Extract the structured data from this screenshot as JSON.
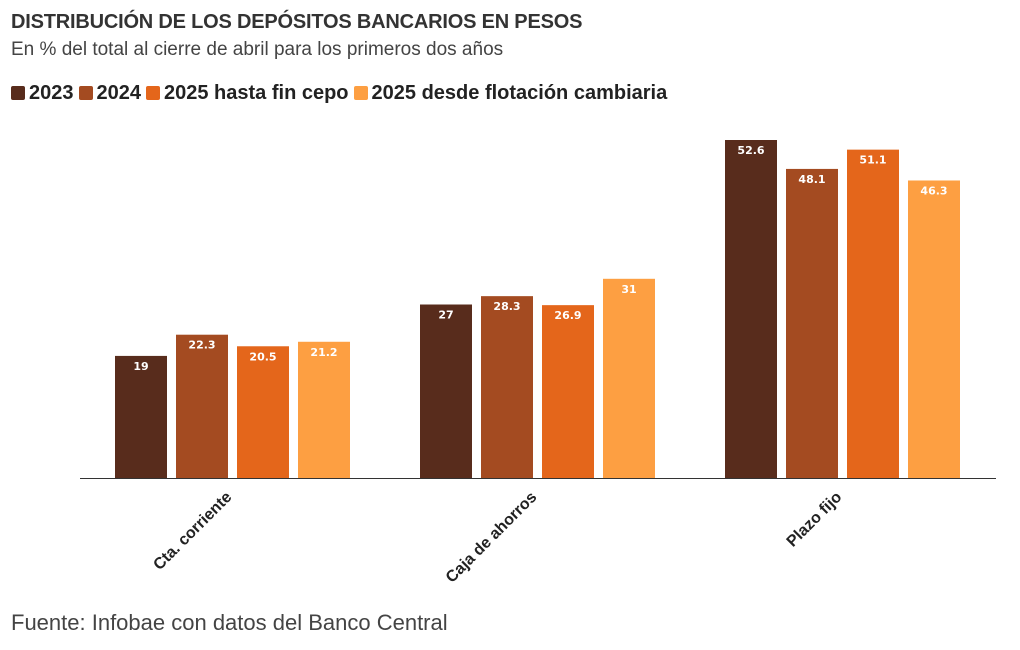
{
  "chart_data": {
    "type": "bar",
    "title": "DISTRIBUCIÓN DE LOS DEPÓSITOS BANCARIOS EN PESOS",
    "subtitle": "En % del total al cierre de abril para los primeros dos años",
    "categories": [
      "Cta. corriente",
      "Caja de ahorros",
      "Plazo fijo"
    ],
    "series": [
      {
        "name": "2023",
        "color": "#582c1c",
        "values": [
          19,
          27,
          52.6
        ]
      },
      {
        "name": "2024",
        "color": "#a44b21",
        "values": [
          22.3,
          28.3,
          48.1
        ]
      },
      {
        "name": "2025 hasta fin cepo",
        "color": "#e4661b",
        "values": [
          20.5,
          26.9,
          51.1
        ]
      },
      {
        "name": "2025 desde flotación cambiaria",
        "color": "#fd9f42",
        "values": [
          21.2,
          31,
          46.3
        ]
      }
    ],
    "value_labels": [
      [
        "19",
        "27",
        "52.6"
      ],
      [
        "22.3",
        "28.3",
        "48.1"
      ],
      [
        "20.5",
        "26.9",
        "51.1"
      ],
      [
        "21.2",
        "31",
        "46.3"
      ]
    ],
    "xlabel": "",
    "ylabel": "",
    "ylim": [
      0,
      52.6
    ],
    "grid": false,
    "legend_position": "top-left",
    "source": "Fuente: Infobae con datos del Banco Central"
  }
}
